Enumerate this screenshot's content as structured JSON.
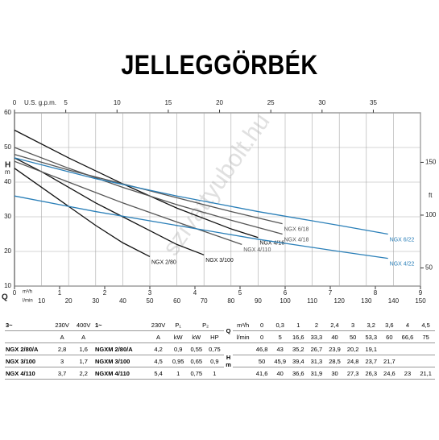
{
  "title": "JELLEGGÖRBÉK",
  "chart_data": {
    "type": "line",
    "watermark": "szivattyubolt.hu",
    "x_label": "Q",
    "x_unit": "l/min",
    "x2_unit": "m³/h",
    "x3_label": "U.S. g.p.m.",
    "y_label": "H",
    "y_unit": "m",
    "y2_unit": "ft",
    "xlim": [
      0,
      150
    ],
    "xticks": [
      10,
      20,
      30,
      40,
      50,
      60,
      70,
      80,
      90,
      100,
      110,
      120,
      130,
      140,
      150
    ],
    "x2lim": [
      0,
      9
    ],
    "x2ticks": [
      0,
      1,
      2,
      3,
      4,
      5,
      6,
      7,
      8,
      9
    ],
    "x3lim": [
      0,
      39.6
    ],
    "x3ticks": [
      0,
      5,
      10,
      15,
      20,
      25,
      30,
      35
    ],
    "ylim": [
      10,
      60
    ],
    "yticks": [
      10,
      20,
      30,
      40,
      50,
      60
    ],
    "y2lim": [
      32.8,
      196.9
    ],
    "y2ticks": [
      50,
      100,
      150
    ],
    "grid": true,
    "series": [
      {
        "name": "NGX 2/80",
        "color": "#111111",
        "x": [
          0,
          10,
          20,
          30,
          40,
          50
        ],
        "values": [
          44,
          38.5,
          33,
          27.5,
          22.5,
          18.5
        ]
      },
      {
        "name": "NGX 3/100",
        "color": "#111111",
        "x": [
          0,
          10,
          20,
          30,
          40,
          50,
          60,
          70
        ],
        "values": [
          47,
          43,
          38.5,
          34,
          30,
          26,
          22,
          19
        ]
      },
      {
        "name": "NGX 4/110",
        "color": "#555555",
        "x": [
          0,
          20,
          40,
          60,
          84
        ],
        "values": [
          46,
          40,
          34,
          28.5,
          22
        ]
      },
      {
        "name": "NGX 4/16",
        "color": "#111111",
        "x": [
          0,
          20,
          40,
          60,
          80,
          90
        ],
        "values": [
          55,
          47,
          39.5,
          32.5,
          26.5,
          24
        ]
      },
      {
        "name": "NGX 4/18",
        "color": "#555555",
        "x": [
          0,
          20,
          40,
          60,
          80,
          99
        ],
        "values": [
          50,
          44,
          38.5,
          33.5,
          29,
          25
        ]
      },
      {
        "name": "NGX 6/18",
        "color": "#555555",
        "x": [
          0,
          20,
          40,
          60,
          80,
          99
        ],
        "values": [
          48,
          43.5,
          39.5,
          35.5,
          31.5,
          28
        ]
      },
      {
        "name": "NGX 6/22",
        "color": "#2a7fb8",
        "x": [
          0,
          30,
          60,
          90,
          120,
          138
        ],
        "values": [
          47,
          41,
          36,
          31.5,
          27.5,
          25
        ]
      },
      {
        "name": "NGX 4/22",
        "color": "#2a7fb8",
        "x": [
          0,
          30,
          60,
          90,
          120,
          138
        ],
        "values": [
          36,
          31.5,
          27.5,
          23.5,
          20,
          18
        ]
      }
    ]
  },
  "table": {
    "head": [
      "3~",
      "230V",
      "400V",
      "1~",
      "230V",
      "P₁",
      "P₂"
    ],
    "units": [
      "A",
      "A",
      "A",
      "kW",
      "kW",
      "HP"
    ],
    "q": {
      "symbol": "Q",
      "units": [
        "m³/h",
        "l/min"
      ],
      "values": [
        [
          "0",
          "0,3",
          "1",
          "2",
          "2,4",
          "3",
          "3,2",
          "3,6",
          "4",
          "4,5"
        ],
        [
          "0",
          "5",
          "16,6",
          "33,3",
          "40",
          "50",
          "53,3",
          "60",
          "66,6",
          "75"
        ]
      ]
    },
    "h": {
      "symbol": "H",
      "unit": "m"
    },
    "rows": [
      {
        "cells": [
          "NGX 2/80/A",
          "2,8",
          "1,6",
          "NGXM 2/80/A",
          "4,2",
          "0,9",
          "0,55",
          "0,75"
        ],
        "h": [
          "46,8",
          "43",
          "35,2",
          "26,7",
          "23,9",
          "20,2",
          "19,1"
        ]
      },
      {
        "cells": [
          "NGX 3/100",
          "3",
          "1,7",
          "NGXM 3/100",
          "4,5",
          "0,95",
          "0,65",
          "0,9"
        ],
        "h": [
          "50",
          "45,9",
          "39,4",
          "31,3",
          "28,5",
          "24,8",
          "23,7",
          "21,7"
        ]
      },
      {
        "cells": [
          "NGX 4/110",
          "3,7",
          "2,2",
          "NGXM 4/110",
          "5,4",
          "1",
          "0,75",
          "1"
        ],
        "h": [
          "41,6",
          "40",
          "36,6",
          "31,9",
          "30",
          "27,3",
          "26,3",
          "24,6",
          "23",
          "21,1"
        ]
      }
    ]
  }
}
